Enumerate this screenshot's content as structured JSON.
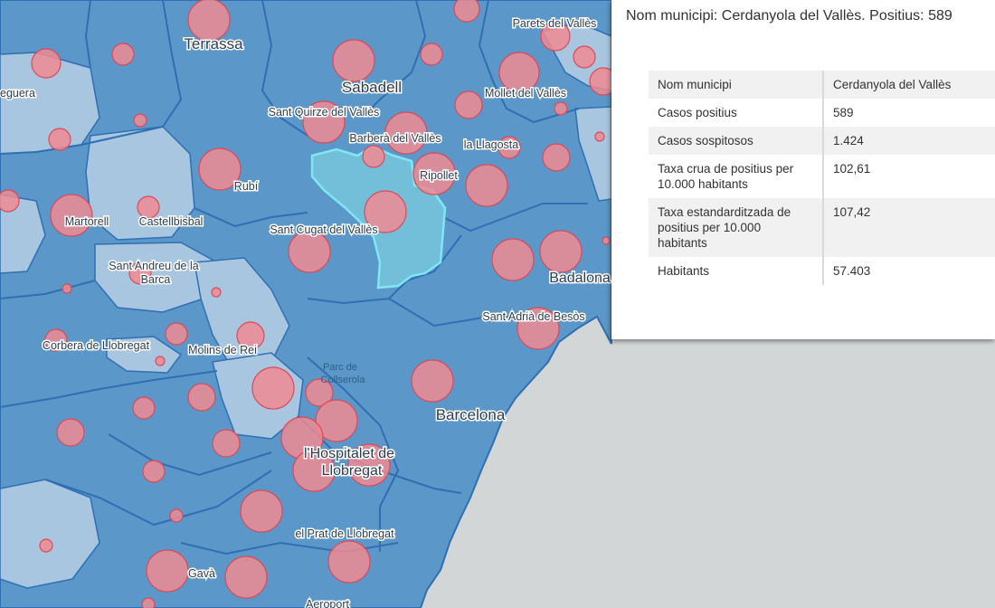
{
  "map": {
    "labels": {
      "terrassa": "Terrassa",
      "sabadell": "Sabadell",
      "parets": "Parets del Vallès",
      "mollet": "Mollet del Vallès",
      "egara": "eguera",
      "quirze": "Sant Quirze del Vallès",
      "barbera": "Barberà del Vallès",
      "llagosta": "la Llagosta",
      "rubi": "Rubí",
      "ripollet": "Ripollet",
      "martorell": "Martorell",
      "castellbisbal": "Castellbisbal",
      "cugat": "Sant Cugat del Vallès",
      "badalona": "Badalona",
      "andreu1": "Sant Andreu de la",
      "andreu2": "Barca",
      "adria": "Sant Adrià de Besòs",
      "corbera": "Corbera de Llobregat",
      "molins": "Molins de Rei",
      "park1": "Parc de",
      "park2": "Collserola",
      "barcelona": "Barcelona",
      "hospitalet1": "l'Hospitalet de",
      "hospitalet2": "Llobregat",
      "prat": "el Prat de Llobregat",
      "gava": "Gavà",
      "aeroport": "Aeroport"
    },
    "colors": {
      "sea": "#d3d6d7",
      "municipality_fill": "#5b97c9",
      "municipality_light": "#a9c6e0",
      "boundary": "#2f6fb3",
      "selected_fill": "#78c6dc",
      "selected_outline": "#7fe7f3",
      "bubble_fill": "#f08a92",
      "bubble_stroke": "#d94a58"
    }
  },
  "popup": {
    "title": "Nom municipi: Cerdanyola del Vallès. Positius: 589",
    "rows": [
      {
        "key": "Nom municipi",
        "value": "Cerdanyola del Vallès"
      },
      {
        "key": "Casos positius",
        "value": "589"
      },
      {
        "key": "Casos sospitosos",
        "value": "1.424"
      },
      {
        "key": "Taxa crua de positius per 10.000 habitants",
        "value": "102,61"
      },
      {
        "key": "Taxa estandarditzada de positius per 10.000 habitants",
        "value": "107,42"
      },
      {
        "key": "Habitants",
        "value": "57.403"
      }
    ]
  }
}
